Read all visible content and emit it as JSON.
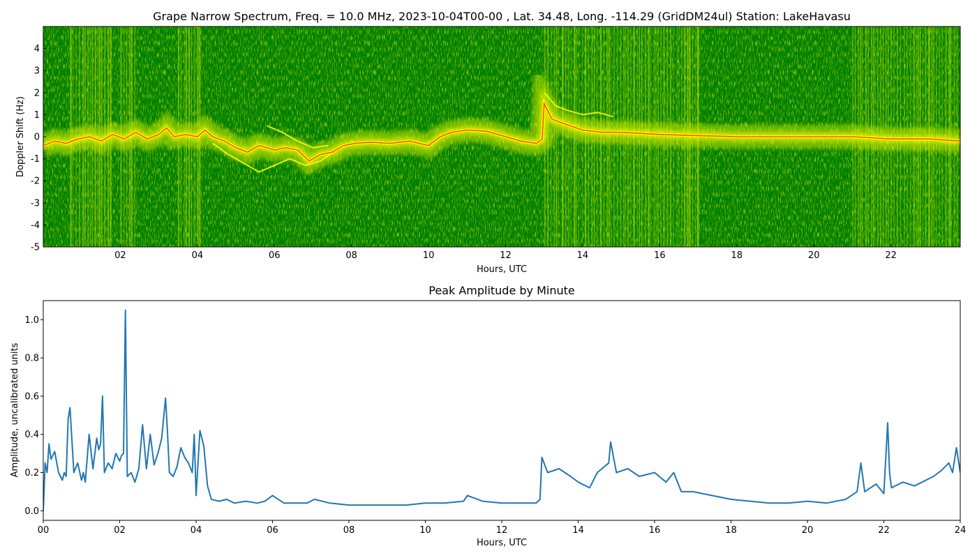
{
  "chart_data": [
    {
      "type": "heatmap",
      "title": "Grape Narrow Spectrum, Freq. = 10.0 MHz, 2023-10-04T00-00 , Lat.  34.48, Long. -114.29 (GridDM24ul) Station: LakeHavasu",
      "xlabel": "Hours, UTC",
      "ylabel": "Doppler Shift (Hz)",
      "xlim": [
        0,
        23.8
      ],
      "ylim": [
        -5,
        5
      ],
      "x_ticks": [
        2,
        4,
        6,
        8,
        10,
        12,
        14,
        16,
        18,
        20,
        22
      ],
      "x_tick_labels": [
        "02",
        "04",
        "06",
        "08",
        "10",
        "12",
        "14",
        "16",
        "18",
        "20",
        "22"
      ],
      "y_ticks": [
        -5,
        -4,
        -3,
        -2,
        -1,
        0,
        1,
        2,
        3,
        4
      ],
      "y_tick_labels": [
        "-5",
        "-4",
        "-3",
        "-2",
        "-1",
        "0",
        "1",
        "2",
        "3",
        "4"
      ],
      "grid": false,
      "colors": {
        "background": "#008000",
        "noise": "#c6e600",
        "trace_mid": "#ffff00",
        "trace_peak": "#ff5000"
      },
      "doppler_trace": {
        "x": [
          0,
          0.3,
          0.6,
          0.9,
          1.2,
          1.5,
          1.8,
          2.1,
          2.4,
          2.7,
          3.0,
          3.2,
          3.4,
          3.7,
          4.0,
          4.2,
          4.4,
          4.7,
          5.0,
          5.3,
          5.6,
          6.0,
          6.3,
          6.6,
          6.9,
          7.2,
          7.5,
          7.8,
          8.1,
          8.5,
          9.0,
          9.5,
          10.0,
          10.3,
          10.6,
          11.0,
          11.5,
          12.0,
          12.4,
          12.8,
          12.95,
          13.0,
          13.2,
          13.5,
          14.0,
          14.5,
          15.0,
          16.0,
          17.0,
          18.0,
          19.0,
          20.0,
          21.0,
          22.0,
          23.0,
          23.8
        ],
        "y": [
          -0.4,
          -0.2,
          -0.3,
          -0.1,
          0.0,
          -0.2,
          0.1,
          -0.1,
          0.2,
          -0.1,
          0.1,
          0.4,
          0.0,
          0.1,
          0.0,
          0.3,
          0.0,
          -0.2,
          -0.5,
          -0.7,
          -0.4,
          -0.6,
          -0.5,
          -0.6,
          -1.1,
          -0.8,
          -0.7,
          -0.4,
          -0.3,
          -0.25,
          -0.3,
          -0.2,
          -0.4,
          0.0,
          0.2,
          0.3,
          0.25,
          0.0,
          -0.2,
          -0.3,
          -0.1,
          1.5,
          0.8,
          0.6,
          0.3,
          0.2,
          0.2,
          0.1,
          0.05,
          0.0,
          0.0,
          0.0,
          0.0,
          -0.1,
          -0.1,
          -0.2
        ]
      },
      "secondary_traces": [
        {
          "x": [
            4.4,
            4.8,
            5.2,
            5.6,
            6.0,
            6.4,
            6.8,
            7.2,
            7.6
          ],
          "y": [
            -0.3,
            -0.8,
            -1.2,
            -1.6,
            -1.3,
            -1.0,
            -1.3,
            -1.1,
            -0.6
          ]
        },
        {
          "x": [
            5.8,
            6.2,
            6.6,
            7.0,
            7.4
          ],
          "y": [
            0.5,
            0.2,
            -0.2,
            -0.5,
            -0.4
          ]
        },
        {
          "x": [
            13.0,
            13.3,
            13.6,
            14.0,
            14.4,
            14.8
          ],
          "y": [
            2.0,
            1.4,
            1.2,
            1.0,
            1.1,
            0.9
          ]
        }
      ]
    },
    {
      "type": "line",
      "title": "Peak Amplitude by Minute",
      "xlabel": "Hours, UTC",
      "ylabel": "Amplitude, uncalibrated units",
      "xlim": [
        0,
        24
      ],
      "ylim": [
        -0.05,
        1.1
      ],
      "x_ticks": [
        0,
        2,
        4,
        6,
        8,
        10,
        12,
        14,
        16,
        18,
        20,
        22,
        24
      ],
      "x_tick_labels": [
        "00",
        "02",
        "04",
        "06",
        "08",
        "10",
        "12",
        "14",
        "16",
        "18",
        "20",
        "22",
        "24"
      ],
      "y_ticks": [
        0,
        0.2,
        0.4,
        0.6,
        0.8,
        1.0
      ],
      "y_tick_labels": [
        "0.0",
        "0.2",
        "0.4",
        "0.6",
        "0.8",
        "1.0"
      ],
      "grid": false,
      "series": [
        {
          "color": "#1f77b4",
          "x": [
            0.0,
            0.05,
            0.1,
            0.15,
            0.2,
            0.3,
            0.4,
            0.5,
            0.55,
            0.6,
            0.65,
            0.7,
            0.8,
            0.9,
            1.0,
            1.05,
            1.1,
            1.2,
            1.3,
            1.35,
            1.4,
            1.45,
            1.5,
            1.55,
            1.6,
            1.7,
            1.8,
            1.9,
            2.0,
            2.05,
            2.1,
            2.15,
            2.2,
            2.3,
            2.4,
            2.5,
            2.6,
            2.7,
            2.8,
            2.9,
            3.0,
            3.1,
            3.2,
            3.25,
            3.3,
            3.4,
            3.5,
            3.6,
            3.7,
            3.8,
            3.9,
            3.95,
            4.0,
            4.1,
            4.2,
            4.3,
            4.4,
            4.6,
            4.8,
            5.0,
            5.3,
            5.6,
            5.8,
            6.0,
            6.3,
            6.6,
            6.9,
            7.1,
            7.5,
            8.0,
            8.5,
            9.0,
            9.5,
            10.0,
            10.5,
            11.0,
            11.1,
            11.5,
            12.0,
            12.5,
            12.9,
            13.0,
            13.05,
            13.2,
            13.5,
            13.8,
            14.0,
            14.3,
            14.5,
            14.8,
            14.85,
            15.0,
            15.3,
            15.6,
            16.0,
            16.3,
            16.5,
            16.7,
            17.0,
            17.5,
            18.0,
            18.5,
            19.0,
            19.5,
            20.0,
            20.5,
            21.0,
            21.3,
            21.4,
            21.5,
            21.8,
            22.0,
            22.1,
            22.15,
            22.2,
            22.5,
            22.8,
            23.0,
            23.3,
            23.5,
            23.7,
            23.8,
            23.9,
            24.0
          ],
          "values": [
            0.0,
            0.25,
            0.2,
            0.35,
            0.27,
            0.31,
            0.2,
            0.16,
            0.2,
            0.18,
            0.48,
            0.54,
            0.2,
            0.25,
            0.16,
            0.2,
            0.15,
            0.4,
            0.22,
            0.3,
            0.38,
            0.32,
            0.35,
            0.6,
            0.2,
            0.25,
            0.22,
            0.3,
            0.26,
            0.29,
            0.3,
            1.05,
            0.18,
            0.2,
            0.15,
            0.22,
            0.45,
            0.22,
            0.4,
            0.24,
            0.3,
            0.38,
            0.59,
            0.42,
            0.2,
            0.18,
            0.23,
            0.33,
            0.28,
            0.25,
            0.2,
            0.4,
            0.08,
            0.42,
            0.34,
            0.13,
            0.06,
            0.05,
            0.06,
            0.04,
            0.05,
            0.04,
            0.05,
            0.08,
            0.04,
            0.04,
            0.04,
            0.06,
            0.04,
            0.03,
            0.03,
            0.03,
            0.03,
            0.04,
            0.04,
            0.05,
            0.08,
            0.05,
            0.04,
            0.04,
            0.04,
            0.06,
            0.28,
            0.2,
            0.22,
            0.18,
            0.15,
            0.12,
            0.2,
            0.25,
            0.36,
            0.2,
            0.22,
            0.18,
            0.2,
            0.15,
            0.2,
            0.1,
            0.1,
            0.08,
            0.06,
            0.05,
            0.04,
            0.04,
            0.05,
            0.04,
            0.06,
            0.1,
            0.25,
            0.1,
            0.14,
            0.09,
            0.46,
            0.2,
            0.12,
            0.15,
            0.13,
            0.15,
            0.18,
            0.21,
            0.25,
            0.2,
            0.33,
            0.2
          ]
        }
      ]
    }
  ]
}
